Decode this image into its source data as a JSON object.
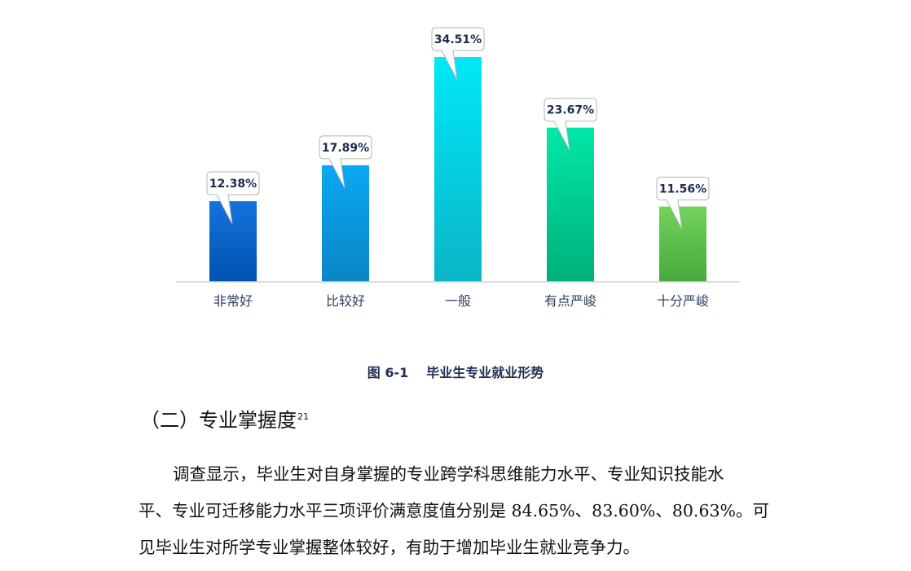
{
  "chart_data": {
    "type": "bar",
    "categories": [
      "非常好",
      "比较好",
      "一般",
      "有点严峻",
      "十分严峻"
    ],
    "values": [
      12.38,
      17.89,
      34.51,
      23.67,
      11.56
    ],
    "data_labels": [
      "12.38%",
      "17.89%",
      "34.51%",
      "23.67%",
      "11.56%"
    ],
    "ylim": [
      0,
      34.51
    ],
    "grid": false,
    "colors": [
      [
        "#1473de",
        "#0052b0"
      ],
      [
        "#0aa8f2",
        "#0a86c6"
      ],
      [
        "#00e8f8",
        "#0ab5c6"
      ],
      [
        "#00e8a8",
        "#00b07a"
      ],
      [
        "#72d45c",
        "#48a83c"
      ]
    ]
  },
  "caption": {
    "number": "图 6-1",
    "text": "毕业生专业就业形势"
  },
  "section": {
    "heading": "（二）专业掌握度",
    "footnote": "21"
  },
  "paragraph": {
    "line1": "调查显示，毕业生对自身掌握的专业跨学科思维能力水平、专业知识技能水",
    "line2": "平、专业可迁移能力水平三项评价满意度值分别是 84.65%、83.60%、80.63%。可",
    "line3": "见毕业生对所学专业掌握整体较好，有助于增加毕业生就业竞争力。"
  }
}
